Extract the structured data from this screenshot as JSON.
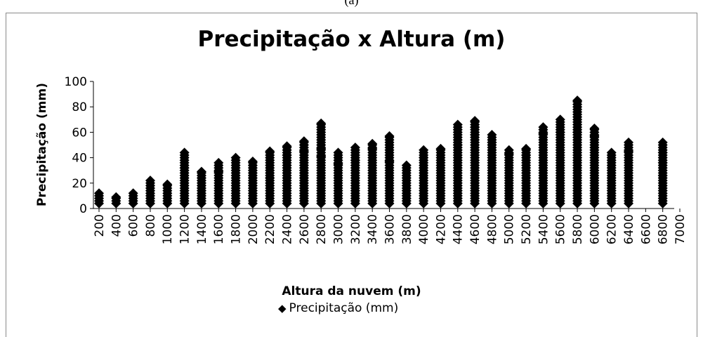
{
  "caption": "(a)",
  "chart_data": {
    "type": "scatter",
    "title": "Precipitação x Altura (m)",
    "xlabel": "Altura da nuvem (m)",
    "ylabel": "Precipitação (mm)",
    "xlim": [
      200,
      7000
    ],
    "ylim": [
      0,
      100
    ],
    "x_ticks": [
      "200",
      "400",
      "600",
      "800",
      "1000",
      "1200",
      "1400",
      "1600",
      "1800",
      "2000",
      "2200",
      "2400",
      "2600",
      "2800",
      "3000",
      "3200",
      "3400",
      "3600",
      "3800",
      "4000",
      "4200",
      "4400",
      "4600",
      "4800",
      "5000",
      "5200",
      "5400",
      "5600",
      "5800",
      "6000",
      "6200",
      "6400",
      "6600",
      "6800",
      "7000"
    ],
    "y_ticks": [
      "0",
      "20",
      "40",
      "60",
      "80",
      "100"
    ],
    "legend_position": "bottom",
    "marker_color": "#000000",
    "series": [
      {
        "name": "Precipitação (mm)",
        "columns": [
          {
            "x": 200,
            "min": 4,
            "max": 12
          },
          {
            "x": 400,
            "min": 4,
            "max": 9
          },
          {
            "x": 600,
            "min": 4,
            "max": 12
          },
          {
            "x": 800,
            "min": 4,
            "max": 22
          },
          {
            "x": 1000,
            "min": 4,
            "max": 19
          },
          {
            "x": 1200,
            "min": 4,
            "max": 44,
            "outliers": [
              32
            ]
          },
          {
            "x": 1400,
            "min": 4,
            "max": 29
          },
          {
            "x": 1600,
            "min": 4,
            "max": 36,
            "outliers": [
              29
            ]
          },
          {
            "x": 1800,
            "min": 4,
            "max": 40
          },
          {
            "x": 2000,
            "min": 4,
            "max": 37
          },
          {
            "x": 2200,
            "min": 4,
            "max": 45,
            "outliers": [
              24
            ]
          },
          {
            "x": 2400,
            "min": 4,
            "max": 49,
            "outliers": [
              42
            ]
          },
          {
            "x": 2600,
            "min": 4,
            "max": 53,
            "outliers": [
              45
            ]
          },
          {
            "x": 2800,
            "min": 4,
            "max": 67,
            "outliers": [
              47,
              41
            ]
          },
          {
            "x": 3000,
            "min": 4,
            "max": 44,
            "outliers": [
              35
            ]
          },
          {
            "x": 3200,
            "min": 4,
            "max": 48,
            "outliers": [
              38
            ]
          },
          {
            "x": 3400,
            "min": 4,
            "max": 51,
            "outliers": [
              47
            ]
          },
          {
            "x": 3600,
            "min": 4,
            "max": 57,
            "outliers": [
              37
            ]
          },
          {
            "x": 3800,
            "min": 4,
            "max": 34
          },
          {
            "x": 4000,
            "min": 4,
            "max": 46,
            "outliers": [
              40
            ]
          },
          {
            "x": 4200,
            "min": 4,
            "max": 47
          },
          {
            "x": 4400,
            "min": 4,
            "max": 66,
            "outliers": [
              50
            ]
          },
          {
            "x": 4600,
            "min": 4,
            "max": 69,
            "outliers": [
              64,
              58
            ]
          },
          {
            "x": 4800,
            "min": 4,
            "max": 58,
            "outliers": [
              52
            ]
          },
          {
            "x": 5000,
            "min": 4,
            "max": 46,
            "outliers": [
              43
            ]
          },
          {
            "x": 5200,
            "min": 4,
            "max": 47,
            "outliers": [
              42
            ]
          },
          {
            "x": 5400,
            "min": 4,
            "max": 64,
            "outliers": [
              59
            ]
          },
          {
            "x": 5600,
            "min": 4,
            "max": 70,
            "outliers": [
              60
            ]
          },
          {
            "x": 5800,
            "min": 4,
            "max": 85,
            "outliers": [
              60
            ]
          },
          {
            "x": 6000,
            "min": 4,
            "max": 63,
            "outliers": [
              57,
              48
            ]
          },
          {
            "x": 6200,
            "min": 4,
            "max": 44
          },
          {
            "x": 6400,
            "min": 4,
            "max": 52,
            "outliers": [
              45
            ]
          },
          {
            "x": 6800,
            "min": 4,
            "max": 52,
            "outliers": [
              44,
              36,
              26
            ]
          }
        ]
      }
    ]
  }
}
